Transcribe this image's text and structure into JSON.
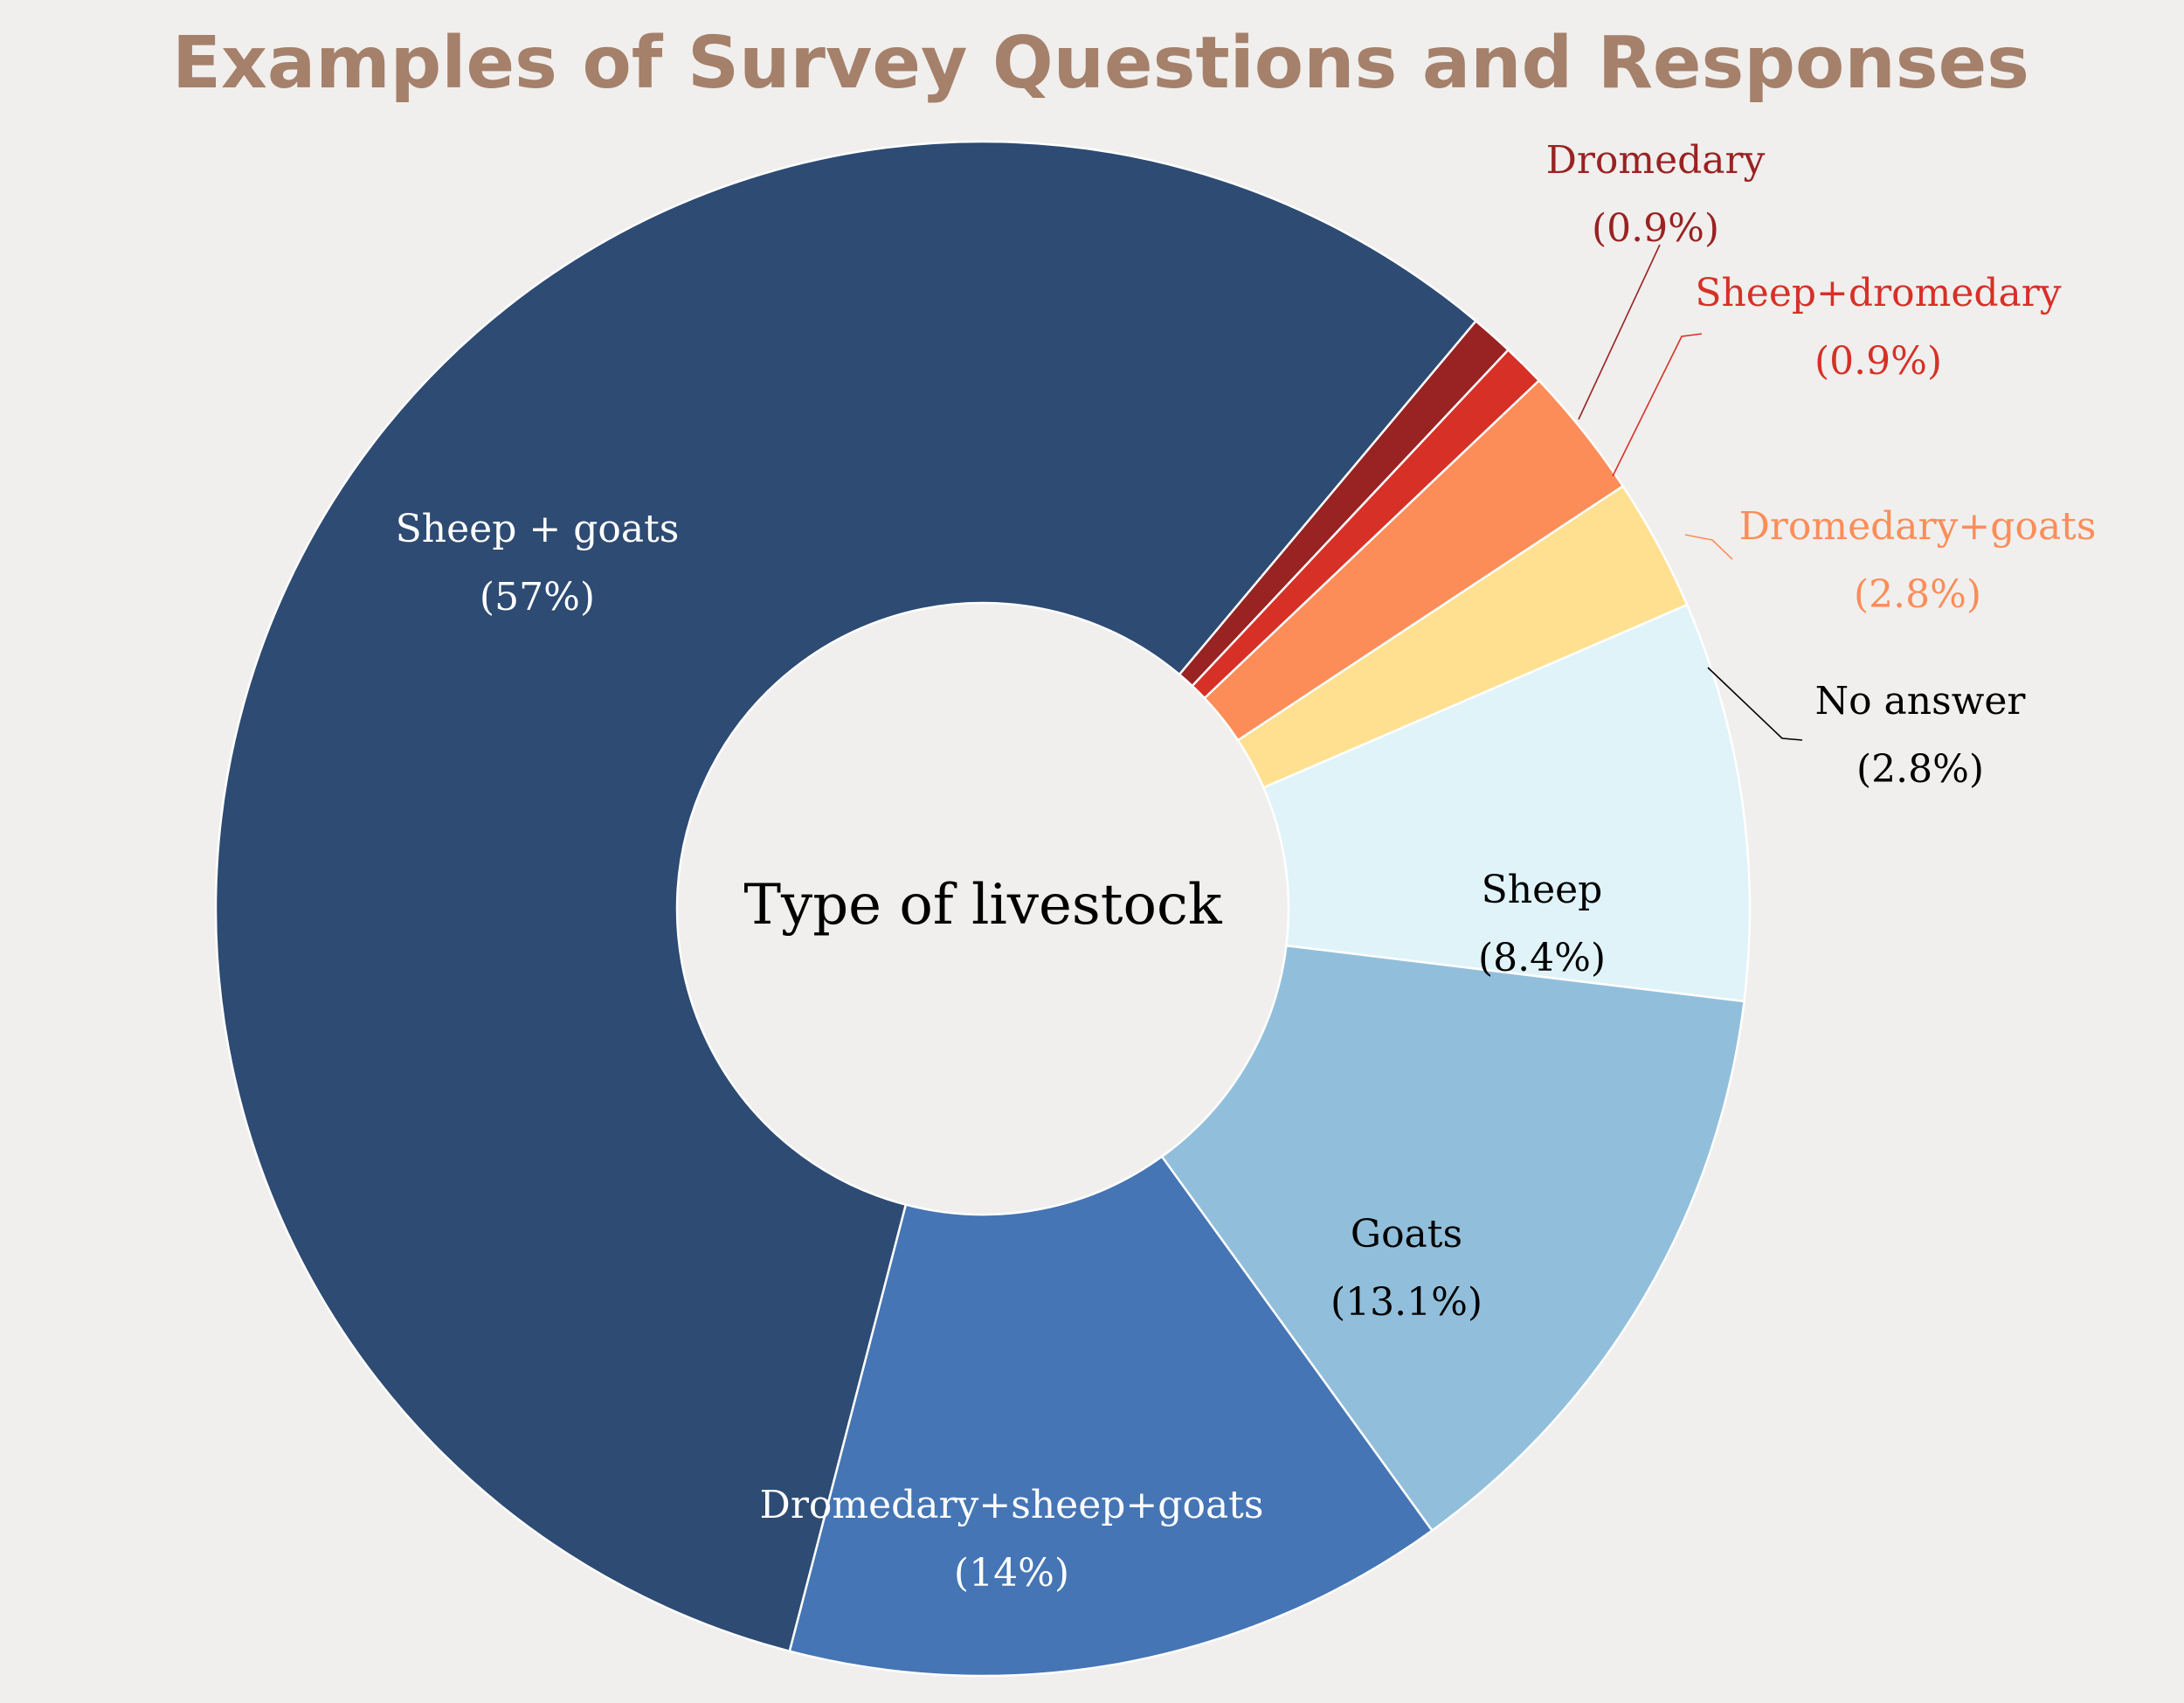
{
  "chart_data": {
    "type": "pie",
    "donut": true,
    "title": "Examples of Survey Questions and Responses",
    "center_label": "Type of livestock",
    "slices": [
      {
        "name": "Dromedary",
        "value": 0.9,
        "label": "(0.9%)",
        "color": "#992222",
        "label_color": "#992222"
      },
      {
        "name": "Sheep+dromedary",
        "value": 0.9,
        "label": "(0.9%)",
        "color": "#d73027",
        "label_color": "#d73027"
      },
      {
        "name": "Dromedary+goats",
        "value": 2.8,
        "label": "(2.8%)",
        "color": "#fc8d59",
        "label_color": "#fc8d59"
      },
      {
        "name": "No answer",
        "value": 2.8,
        "label": "(2.8%)",
        "color": "#fee090",
        "label_color": "#000000"
      },
      {
        "name": "Sheep",
        "value": 8.4,
        "label": "(8.4%)",
        "color": "#e0f3f8",
        "label_color": "#000000"
      },
      {
        "name": "Goats",
        "value": 13.1,
        "label": "(13.1%)",
        "color": "#91bfdb",
        "label_color": "#000000"
      },
      {
        "name": "Dromedary+sheep+goats",
        "value": 14,
        "label": "(14%)",
        "color": "#4575b4",
        "label_color": "#ffffff"
      },
      {
        "name": "Sheep + goats",
        "value": 57,
        "label": "(57%)",
        "color": "#2d4b73",
        "label_color": "#ffffff"
      }
    ]
  }
}
